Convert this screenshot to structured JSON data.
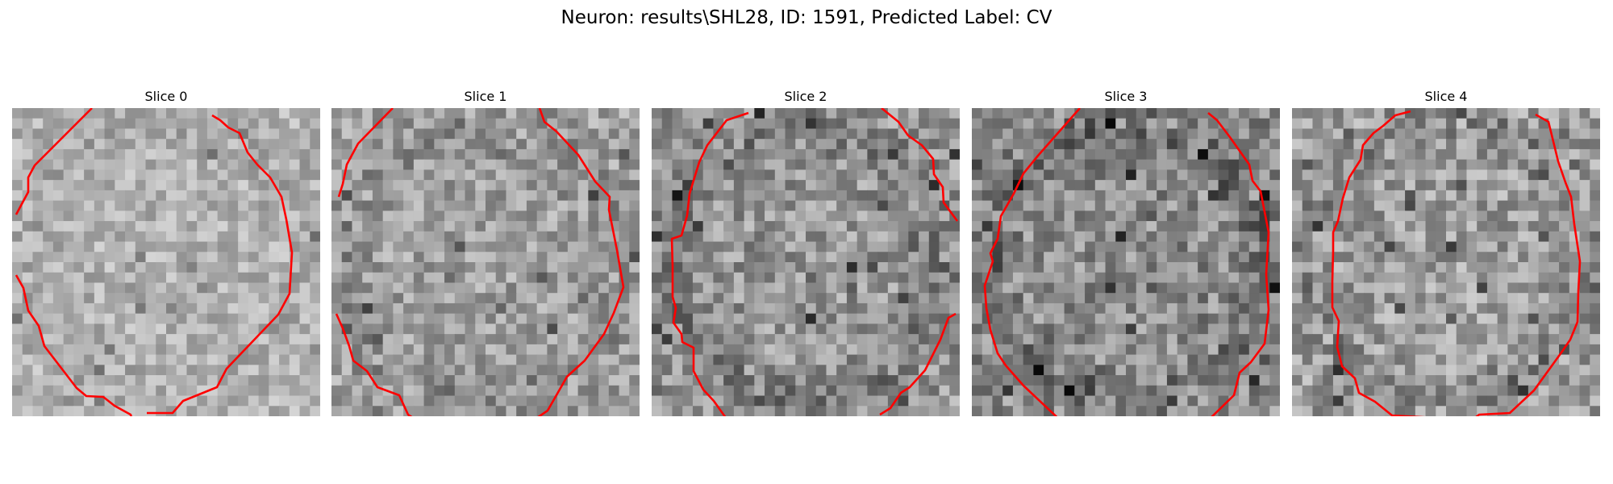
{
  "figure": {
    "title": "Neuron: results\\SHL28, ID: 1591, Predicted Label: CV",
    "contour_color": "#ff0000",
    "grid_size": 30,
    "colormap": "grayscale",
    "slices": [
      {
        "label": "Slice 0",
        "seed": 11,
        "mean": 178,
        "spread": 70,
        "dark_ring": 0.2
      },
      {
        "label": "Slice 1",
        "seed": 23,
        "mean": 160,
        "spread": 85,
        "dark_ring": 0.45
      },
      {
        "label": "Slice 2",
        "seed": 37,
        "mean": 150,
        "spread": 95,
        "dark_ring": 0.7
      },
      {
        "label": "Slice 3",
        "seed": 51,
        "mean": 140,
        "spread": 100,
        "dark_ring": 0.8
      },
      {
        "label": "Slice 4",
        "seed": 67,
        "mean": 158,
        "spread": 95,
        "dark_ring": 0.6
      }
    ]
  }
}
